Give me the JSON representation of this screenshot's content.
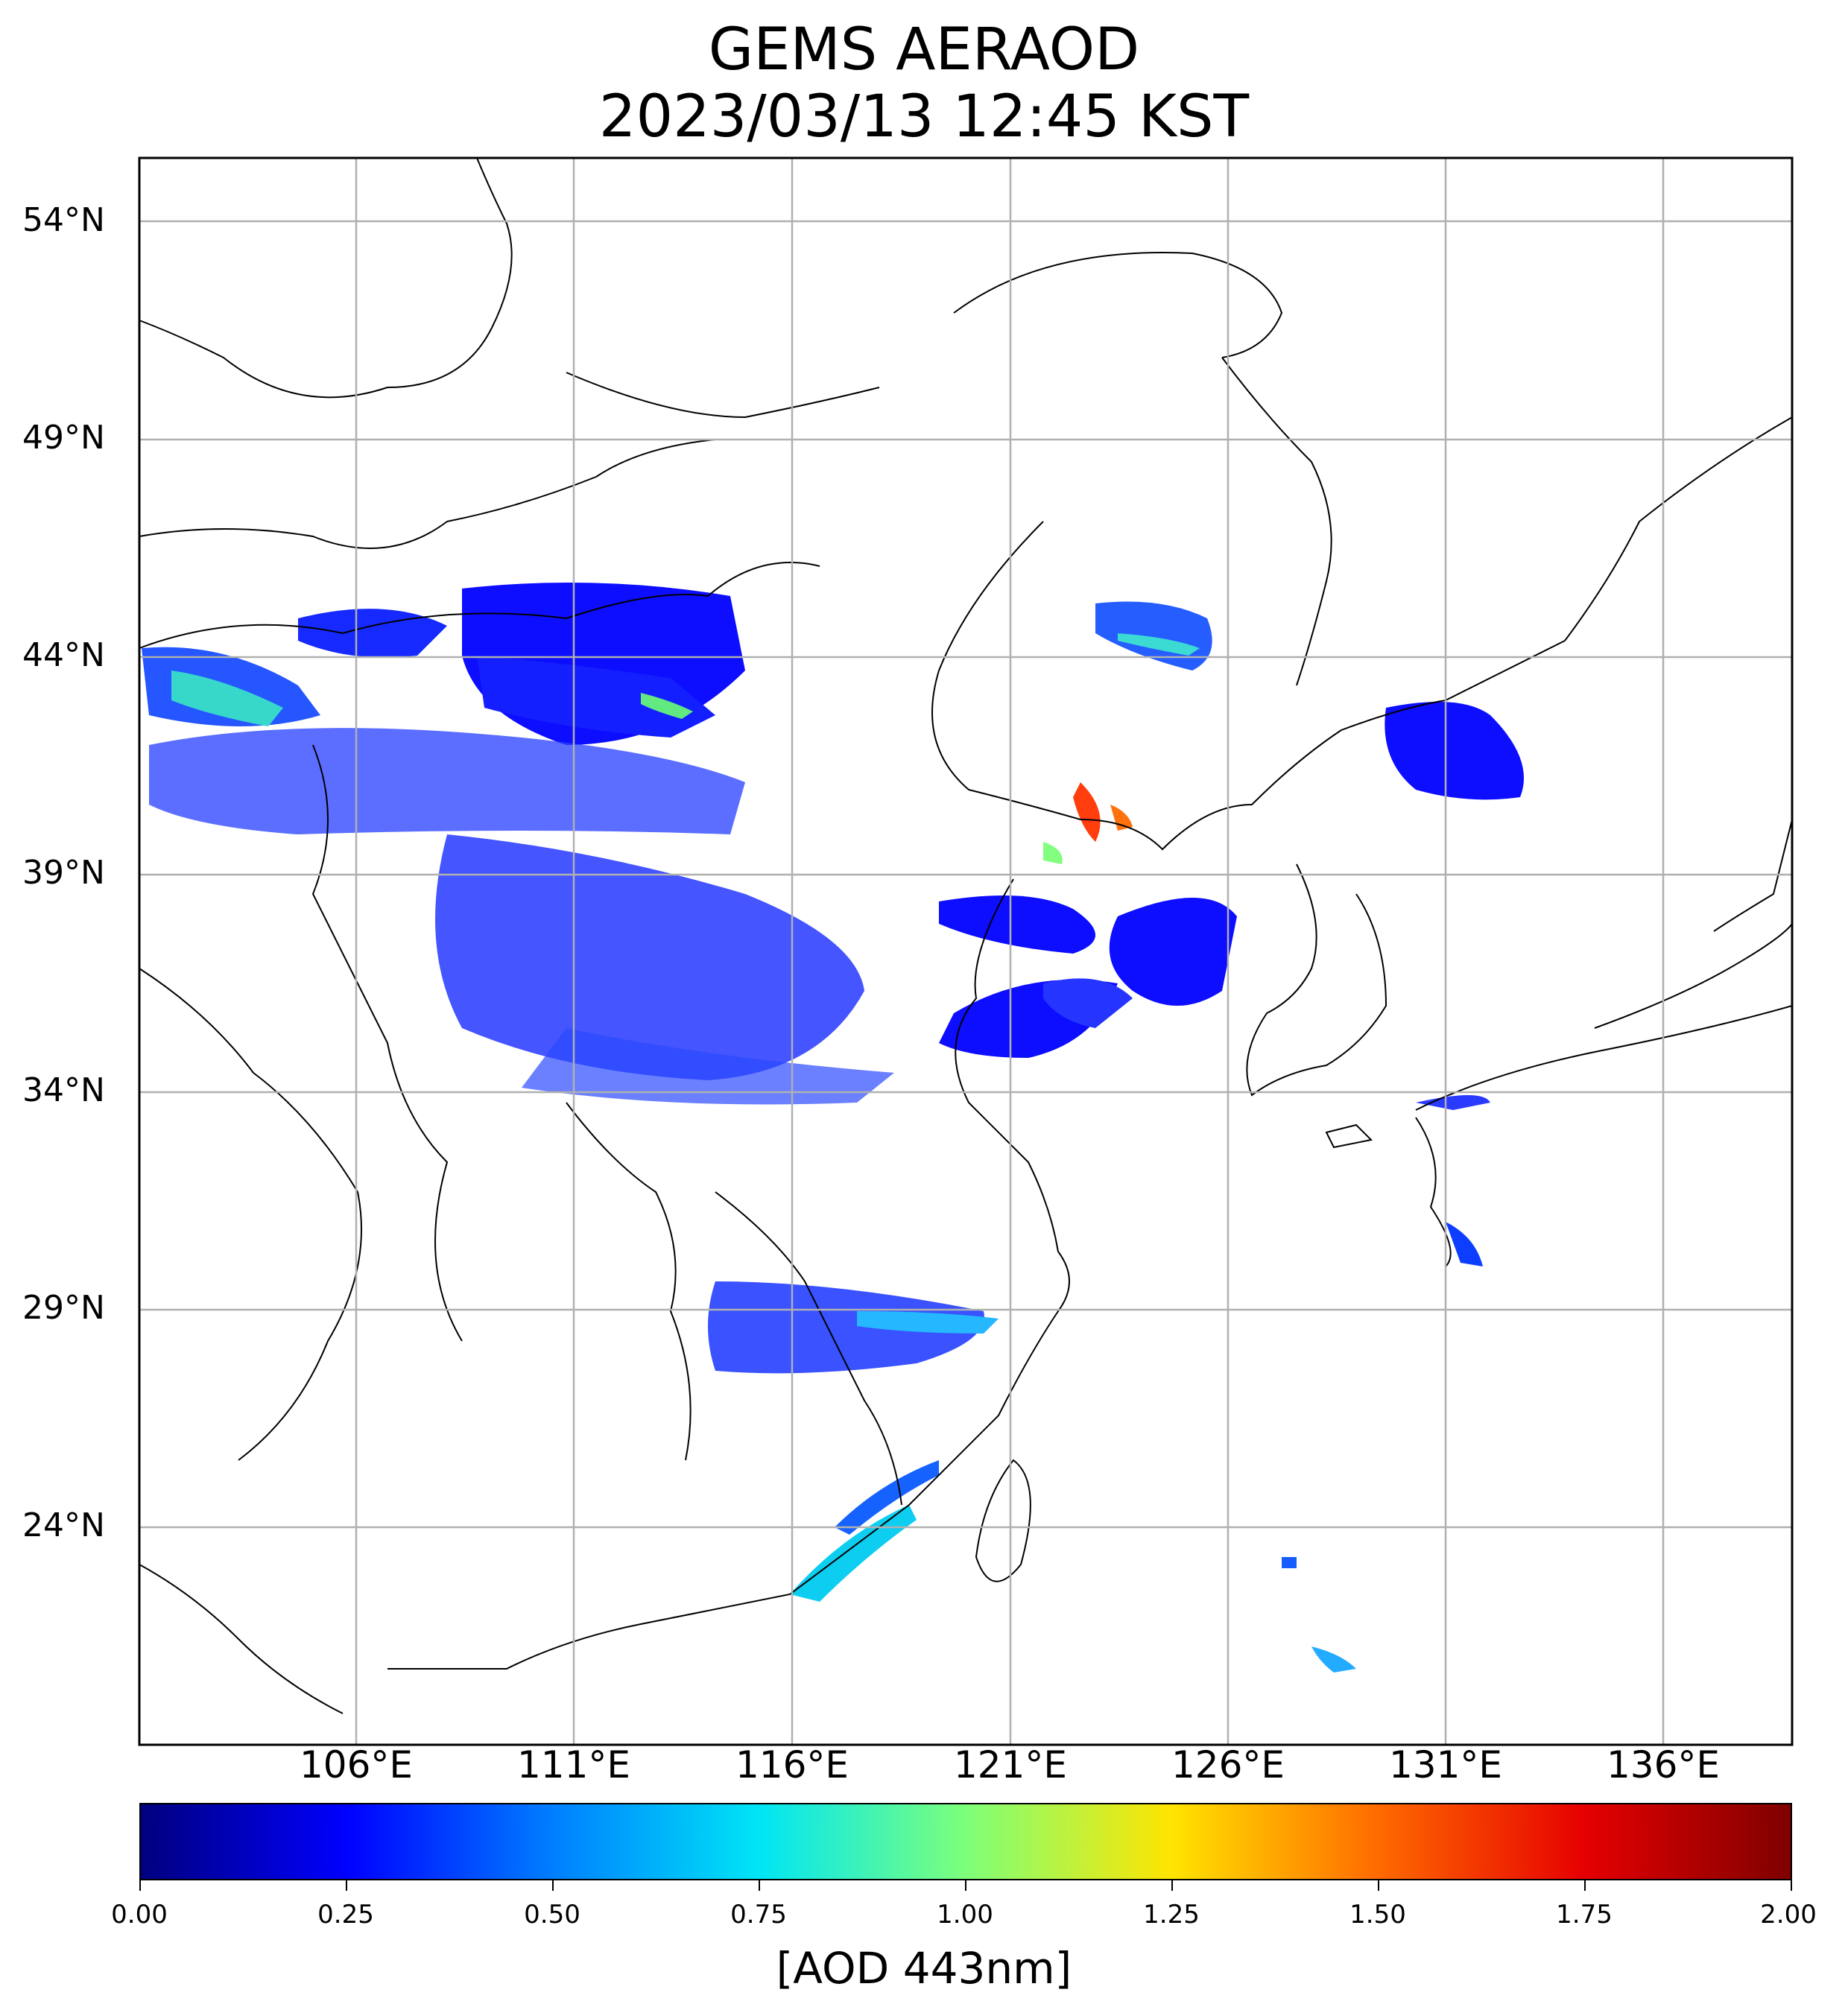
{
  "title": {
    "line1": "GEMS AERAOD",
    "line2": "2023/03/13 12:45 KST"
  },
  "map": {
    "lat_labels": [
      "54°N",
      "49°N",
      "44°N",
      "39°N",
      "34°N",
      "29°N",
      "24°N"
    ],
    "lon_labels": [
      "106°E",
      "111°E",
      "116°E",
      "121°E",
      "126°E",
      "131°E",
      "136°E"
    ],
    "grid": true
  },
  "colorbar": {
    "label": "[AOD 443nm]",
    "ticks": [
      "0.00",
      "0.25",
      "0.50",
      "0.75",
      "1.00",
      "1.25",
      "1.50",
      "1.75",
      "2.00"
    ],
    "range": [
      0,
      2
    ],
    "colormap": [
      "#00007f",
      "#0000ff",
      "#007fff",
      "#00e5f5",
      "#7dff7a",
      "#ffe400",
      "#ff6a00",
      "#e60000",
      "#7f0000"
    ]
  },
  "colors": {
    "low_aod": "#0000ff",
    "moderate_aod": "#00bfff",
    "high_aod": "#ff3300",
    "grid": "#b0b0b0",
    "border": "#000000"
  }
}
